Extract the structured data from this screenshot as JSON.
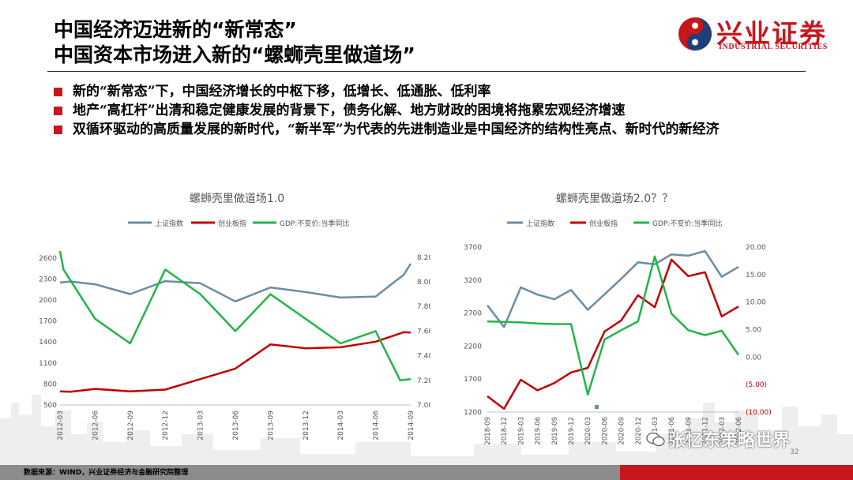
{
  "header": {
    "title_line1": "中国经济迈进新的“新常态”",
    "title_line2": "中国资本市场进入新的“螺蛳壳里做道场”",
    "logo_cn": "兴业证券",
    "logo_en": "INDUSTRIAL SECURITIES"
  },
  "bullets": [
    "新的“新常态”下，中国经济增长的中枢下移，低增长、低通胀、低利率",
    "地产“高杠杆”出清和稳定健康发展的背景下，债务化解、地方财政的困境将拖累宏观经济增速",
    "双循环驱动的高质量发展的新时代，“新半军”为代表的先进制造业是中国经济的结构性亮点、新时代的新经济"
  ],
  "colors": {
    "shanghai": "#6a8ca8",
    "chinext": "#c00000",
    "gdp": "#22b54a",
    "brand_red": "#c8161d",
    "footer_gray": "#8c8c8c",
    "negative_label": "#c00000"
  },
  "chart_data": [
    {
      "type": "line",
      "title": "螺蛳壳里做道场1.0",
      "legend": [
        "上证指数",
        "创业板指",
        "GDP:不变价:当季同比"
      ],
      "categories": [
        "2012-03",
        "2012-06",
        "2012-09",
        "2012-12",
        "2013-03",
        "2013-06",
        "2013-09",
        "2013-12",
        "2014-03",
        "2014-06",
        "2014-09"
      ],
      "left_axis": {
        "ticks": [
          "500",
          "800",
          "1100",
          "1400",
          "1700",
          "2000",
          "2300",
          "2600"
        ],
        "range": [
          500,
          2700
        ]
      },
      "right_axis": {
        "ticks": [
          "7.00",
          "7.20",
          "7.40",
          "7.60",
          "7.80",
          "8.00",
          "8.20"
        ],
        "range": [
          7.0,
          8.25
        ]
      },
      "series": [
        {
          "name": "上证指数",
          "axis": "left",
          "x": [
            0,
            0.3,
            1,
            2,
            3,
            4,
            5,
            6,
            7,
            8,
            9,
            9.8,
            10
          ],
          "values": [
            2250,
            2265,
            2225,
            2085,
            2270,
            2240,
            1980,
            2180,
            2115,
            2035,
            2050,
            2360,
            2520
          ]
        },
        {
          "name": "创业板指",
          "axis": "left",
          "x": [
            0,
            0.3,
            1,
            2,
            3,
            4,
            5,
            6,
            7,
            8,
            9,
            9.8,
            10
          ],
          "values": [
            695,
            690,
            730,
            695,
            720,
            870,
            1020,
            1365,
            1310,
            1325,
            1405,
            1540,
            1535
          ]
        },
        {
          "name": "GDP:不变价:当季同比",
          "axis": "right",
          "x": [
            0,
            0.1,
            1,
            2,
            3,
            4,
            5,
            6,
            7,
            8,
            9,
            9.7,
            10
          ],
          "values": [
            8.25,
            8.1,
            7.7,
            7.5,
            8.1,
            7.9,
            7.6,
            7.9,
            7.7,
            7.5,
            7.6,
            7.2,
            7.21
          ]
        }
      ]
    },
    {
      "type": "line",
      "title": "螺蛳壳里做道场2.0？？",
      "legend": [
        "上证指数",
        "创业板指",
        "GDP:不变价:当季同比"
      ],
      "categories": [
        "2018-09",
        "2018-12",
        "2019-03",
        "2019-06",
        "2019-09",
        "2019-12",
        "2020-03",
        "2020-06",
        "2020-09",
        "2020-12",
        "2021-03",
        "2021-06",
        "2021-09",
        "2021-12",
        "2022-03",
        "2022-06"
      ],
      "left_axis": {
        "ticks": [
          "1200",
          "1700",
          "2200",
          "2700",
          "3200",
          "3700"
        ],
        "range": [
          1200,
          3700
        ]
      },
      "right_axis": {
        "ticks": [
          "(10.00)",
          "(5.00)",
          "0.00",
          "5.00",
          "10.00",
          "15.00",
          "20.00"
        ],
        "range": [
          -10,
          20
        ]
      },
      "series": [
        {
          "name": "上证指数",
          "axis": "left",
          "values": [
            2820,
            2490,
            3090,
            2980,
            2910,
            3050,
            2750,
            2985,
            3220,
            3470,
            3440,
            3590,
            3570,
            3640,
            3250,
            3400
          ]
        },
        {
          "name": "创业板指",
          "axis": "left",
          "values": [
            1440,
            1250,
            1690,
            1530,
            1640,
            1800,
            1870,
            2420,
            2590,
            2970,
            2790,
            3510,
            3260,
            3320,
            2650,
            2800
          ]
        },
        {
          "name": "GDP:不变价:当季同比",
          "axis": "right",
          "values": [
            6.5,
            6.4,
            6.3,
            6.1,
            6.0,
            6.0,
            -6.8,
            3.2,
            4.9,
            6.5,
            18.3,
            7.9,
            4.9,
            4.0,
            4.8,
            0.4
          ]
        }
      ]
    }
  ],
  "footer": {
    "source": "数据来源：WIND，兴业证券经济与金融研究院整理",
    "page_number": "32"
  },
  "watermark": {
    "text": "张忆东策略世界"
  }
}
